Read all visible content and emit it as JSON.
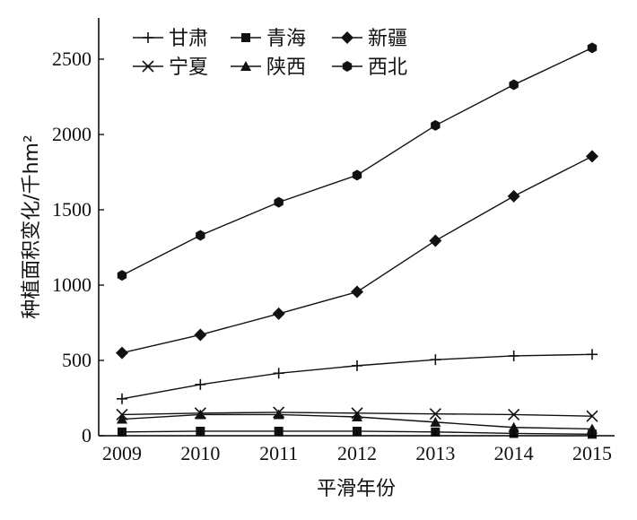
{
  "chart_data": {
    "type": "line",
    "xlabel": "平滑年份",
    "ylabel": "种植面积变化/千hm²",
    "categories": [
      "2009",
      "2010",
      "2011",
      "2012",
      "2013",
      "2014",
      "2015"
    ],
    "ylim": [
      0,
      2750
    ],
    "yticks": [
      0,
      500,
      1000,
      1500,
      2000,
      2500
    ],
    "grid": false,
    "legend_position": "top-left",
    "series": [
      {
        "name": "甘肃",
        "marker": "plus",
        "values": [
          245,
          340,
          415,
          465,
          505,
          530,
          540
        ]
      },
      {
        "name": "青海",
        "marker": "square",
        "values": [
          25,
          30,
          30,
          30,
          25,
          15,
          10
        ]
      },
      {
        "name": "新疆",
        "marker": "diamond",
        "values": [
          550,
          670,
          810,
          955,
          1295,
          1590,
          1855
        ]
      },
      {
        "name": "宁夏",
        "marker": "x",
        "values": [
          140,
          150,
          155,
          150,
          145,
          140,
          130
        ]
      },
      {
        "name": "陕西",
        "marker": "triangle",
        "values": [
          110,
          140,
          140,
          125,
          90,
          55,
          45
        ]
      },
      {
        "name": "西北",
        "marker": "hexagon",
        "values": [
          1065,
          1330,
          1550,
          1730,
          2060,
          2330,
          2575
        ]
      }
    ]
  }
}
